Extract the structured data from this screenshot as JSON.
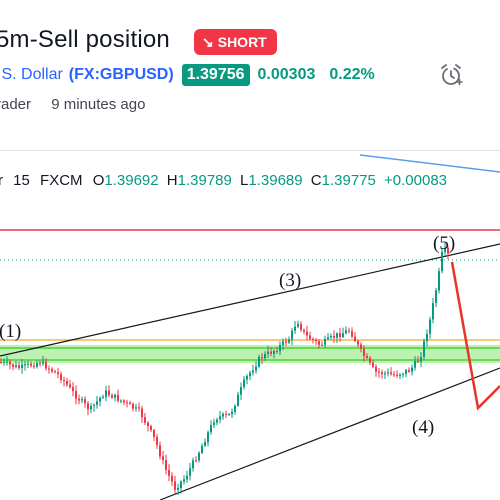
{
  "header": {
    "title": "5m-Sell position",
    "badge_label": "SHORT",
    "badge_color": "#f23645",
    "symbol_name": ".S. Dollar",
    "symbol_code": "(FX:GBPUSD)",
    "price": "1.39756",
    "change": "0.00303",
    "change_percent": "0.22%",
    "author": "rader",
    "published": "9 minutes ago",
    "alarm_icon": "alarm-clock-icon"
  },
  "legend": {
    "prefix": "r",
    "interval": "15",
    "exchange": "FXCM",
    "open_label": "O",
    "open": "1.39692",
    "high_label": "H",
    "high": "1.39789",
    "low_label": "L",
    "low": "1.39689",
    "close_label": "C",
    "close": "1.39775",
    "change": "+0.00083"
  },
  "annotations": {
    "wave1": "(1)",
    "wave3": "(3)",
    "wave4": "(4)",
    "wave5": "(5)"
  },
  "colors": {
    "up": "#089981",
    "down": "#f23645",
    "resistance": "#f23645",
    "support_zone": "#7ee06a",
    "level_orange": "#f5a623",
    "trendline": "#131722",
    "projection": "#e8352a"
  }
}
